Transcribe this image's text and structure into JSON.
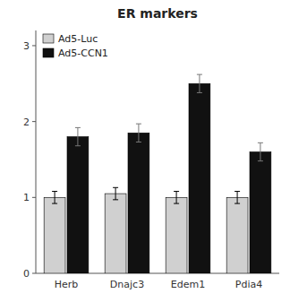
{
  "chart_data": {
    "type": "bar",
    "title": "ER markers",
    "categories": [
      "Herb",
      "Dnajc3",
      "Edem1",
      "Pdia4"
    ],
    "series": [
      {
        "name": "Ad5-Luc",
        "color": "#d0d0d0",
        "values": [
          1.0,
          1.05,
          1.0,
          1.0
        ],
        "errors": [
          0.08,
          0.08,
          0.08,
          0.08
        ]
      },
      {
        "name": "Ad5-CCN1",
        "color": "#111111",
        "values": [
          1.8,
          1.85,
          2.5,
          1.6
        ],
        "errors": [
          0.12,
          0.12,
          0.12,
          0.12
        ]
      }
    ],
    "ylim": [
      0,
      3.2
    ],
    "yticks": [
      0,
      1,
      2,
      3
    ],
    "grid": false,
    "legend": "upper left"
  }
}
